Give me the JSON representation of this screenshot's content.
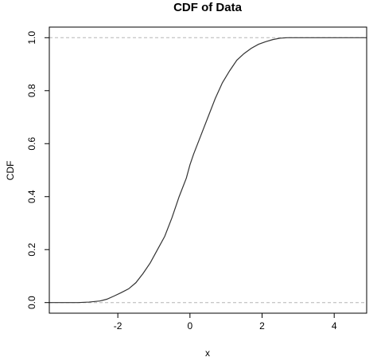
{
  "chart_data": {
    "type": "line",
    "title": "CDF of Data",
    "xlabel": "x",
    "ylabel": "CDF",
    "xlim": [
      -3.9,
      4.9
    ],
    "ylim": [
      -0.04,
      1.04
    ],
    "x_ticks": [
      -2,
      0,
      2,
      4
    ],
    "y_ticks": [
      0.0,
      0.2,
      0.4,
      0.6,
      0.8,
      1.0
    ],
    "x_tick_labels": [
      "-2",
      "0",
      "2",
      "4"
    ],
    "y_tick_labels": [
      "0.0",
      "0.2",
      "0.4",
      "0.6",
      "0.8",
      "1.0"
    ],
    "reference_lines": [
      0,
      1
    ],
    "grid": false,
    "colors": {
      "line": "#333333",
      "reference": "#b5b5b5",
      "axis": "#000000"
    },
    "series": [
      {
        "x": [
          -3.9,
          -3.1,
          -2.8,
          -2.5,
          -2.3,
          -2.1,
          -1.9,
          -1.7,
          -1.5,
          -1.3,
          -1.1,
          -0.9,
          -0.7,
          -0.5,
          -0.3,
          -0.1,
          0.0,
          0.1,
          0.3,
          0.5,
          0.7,
          0.9,
          1.1,
          1.3,
          1.5,
          1.7,
          1.9,
          2.1,
          2.3,
          2.5,
          2.7,
          3.0,
          3.5,
          4.9
        ],
        "y": [
          0.0,
          0.0,
          0.002,
          0.006,
          0.013,
          0.025,
          0.038,
          0.052,
          0.075,
          0.11,
          0.15,
          0.2,
          0.25,
          0.32,
          0.4,
          0.47,
          0.52,
          0.56,
          0.63,
          0.7,
          0.77,
          0.83,
          0.875,
          0.915,
          0.94,
          0.96,
          0.975,
          0.985,
          0.993,
          0.998,
          1.0,
          1.0,
          1.0,
          1.0
        ]
      }
    ]
  }
}
